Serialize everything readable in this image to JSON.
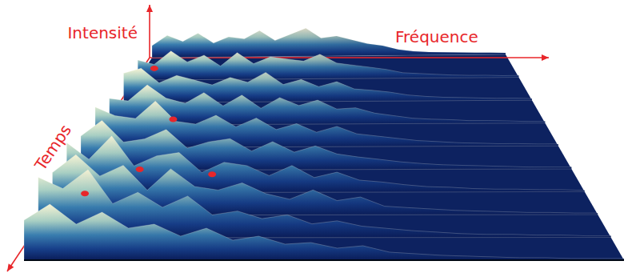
{
  "chart_data": {
    "type": "surface",
    "x_label": "Fréquence",
    "y_label": "Temps",
    "z_label": "Intensité",
    "tick_labels": false,
    "xlim": [
      0,
      1
    ],
    "ylim": [
      0,
      1
    ],
    "zlim": [
      0,
      1
    ],
    "frequency": [
      0,
      0.043,
      0.087,
      0.13,
      0.174,
      0.217,
      0.261,
      0.304,
      0.348,
      0.391,
      0.435,
      0.478,
      0.522,
      0.565,
      0.609,
      0.652,
      0.696,
      0.739,
      0.783,
      0.826,
      0.87,
      0.913,
      0.957,
      1
    ],
    "time": [
      0,
      0.111,
      0.222,
      0.333,
      0.444,
      0.556,
      0.667,
      0.778,
      0.889,
      1
    ],
    "intensity": [
      [
        0.3,
        0.55,
        0.4,
        0.6,
        0.35,
        0.5,
        0.45,
        0.65,
        0.4,
        0.55,
        0.7,
        0.45,
        0.5,
        0.4,
        0.3,
        0.25,
        0.15,
        0.1,
        0.08,
        0.07,
        0.06,
        0.05,
        0.05,
        0.04
      ],
      [
        0.45,
        0.35,
        0.65,
        0.4,
        0.55,
        0.3,
        0.6,
        0.35,
        0.5,
        0.45,
        0.4,
        0.55,
        0.35,
        0.3,
        0.25,
        0.2,
        0.12,
        0.1,
        0.08,
        0.06,
        0.05,
        0.05,
        0.04,
        0.04
      ],
      [
        0.6,
        0.7,
        0.4,
        0.55,
        0.45,
        0.35,
        0.5,
        0.4,
        0.6,
        0.35,
        0.45,
        0.3,
        0.4,
        0.25,
        0.22,
        0.18,
        0.12,
        0.09,
        0.07,
        0.06,
        0.05,
        0.04,
        0.04,
        0.03
      ],
      [
        0.5,
        0.45,
        0.75,
        0.5,
        0.4,
        0.6,
        0.35,
        0.55,
        0.3,
        0.5,
        0.35,
        0.45,
        0.28,
        0.3,
        0.2,
        0.15,
        0.1,
        0.08,
        0.07,
        0.05,
        0.05,
        0.04,
        0.03,
        0.03
      ],
      [
        0.7,
        0.55,
        0.5,
        0.8,
        0.45,
        0.4,
        0.55,
        0.35,
        0.5,
        0.3,
        0.4,
        0.25,
        0.35,
        0.22,
        0.18,
        0.14,
        0.1,
        0.08,
        0.06,
        0.05,
        0.04,
        0.04,
        0.03,
        0.03
      ],
      [
        0.55,
        0.8,
        0.45,
        0.5,
        0.65,
        0.35,
        0.45,
        0.5,
        0.3,
        0.45,
        0.28,
        0.38,
        0.25,
        0.2,
        0.16,
        0.12,
        0.09,
        0.07,
        0.06,
        0.05,
        0.04,
        0.03,
        0.03,
        0.03
      ],
      [
        0.75,
        0.5,
        0.85,
        0.4,
        0.55,
        0.6,
        0.3,
        0.45,
        0.4,
        0.25,
        0.4,
        0.22,
        0.3,
        0.18,
        0.15,
        0.11,
        0.08,
        0.07,
        0.05,
        0.04,
        0.04,
        0.03,
        0.03,
        0.02
      ],
      [
        0.6,
        0.85,
        0.55,
        0.7,
        0.35,
        0.65,
        0.4,
        0.35,
        0.45,
        0.3,
        0.22,
        0.35,
        0.2,
        0.25,
        0.12,
        0.1,
        0.08,
        0.06,
        0.05,
        0.04,
        0.03,
        0.03,
        0.02,
        0.02
      ],
      [
        0.8,
        0.65,
        0.9,
        0.45,
        0.6,
        0.4,
        0.55,
        0.3,
        0.35,
        0.25,
        0.3,
        0.18,
        0.22,
        0.15,
        0.12,
        0.09,
        0.07,
        0.05,
        0.04,
        0.04,
        0.03,
        0.03,
        0.02,
        0.02
      ],
      [
        0.5,
        0.7,
        0.45,
        0.6,
        0.4,
        0.45,
        0.3,
        0.4,
        0.25,
        0.3,
        0.2,
        0.22,
        0.15,
        0.18,
        0.1,
        0.08,
        0.06,
        0.05,
        0.04,
        0.03,
        0.03,
        0.02,
        0.02,
        0.02
      ]
    ],
    "peaks": [
      {
        "time": 0.12,
        "frequency": 0.046,
        "intensity": 0.3
      },
      {
        "time": 0.4,
        "frequency": 0.16,
        "intensity": 0.34
      },
      {
        "time": 0.7,
        "frequency": 0.147,
        "intensity": 0.44
      },
      {
        "time": 0.75,
        "frequency": 0.29,
        "intensity": 0.5
      },
      {
        "time": 0.85,
        "frequency": 0.074,
        "intensity": 0.49
      }
    ]
  }
}
